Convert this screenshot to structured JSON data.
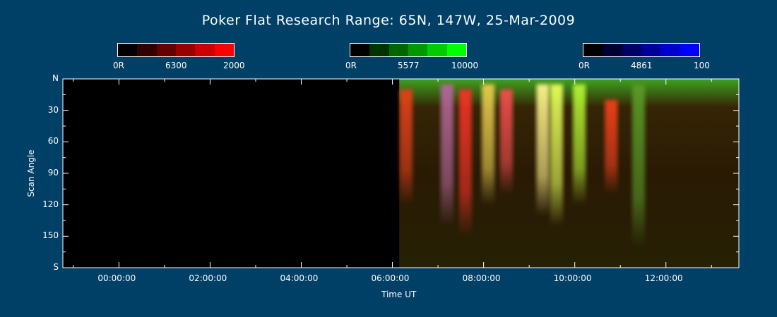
{
  "title": "Poker Flat Research Range: 65N, 147W, 25-Mar-2009",
  "colorbars": [
    {
      "name": "6300",
      "min_label": "0R",
      "mid_label": "6300",
      "max_label": "2000",
      "colors": [
        "#000000",
        "#330000",
        "#660000",
        "#990000",
        "#cc0000",
        "#ff0000"
      ]
    },
    {
      "name": "5577",
      "min_label": "0R",
      "mid_label": "5577",
      "max_label": "10000",
      "colors": [
        "#000000",
        "#003300",
        "#006600",
        "#009900",
        "#00cc00",
        "#00ff00"
      ]
    },
    {
      "name": "4861",
      "min_label": "0R",
      "mid_label": "4861",
      "max_label": "100",
      "colors": [
        "#000000",
        "#000033",
        "#000066",
        "#000099",
        "#0000cc",
        "#0000ff"
      ]
    }
  ],
  "chart_data": {
    "type": "heatmap",
    "title": "Poker Flat Research Range: 65N, 147W, 25-Mar-2009",
    "xlabel": "Time UT",
    "ylabel": "Scan Angle",
    "x_ticks": [
      "00:00:00",
      "02:00:00",
      "04:00:00",
      "06:00:00",
      "08:00:00",
      "10:00:00",
      "12:00:00"
    ],
    "x_tick_hours": [
      0,
      2,
      4,
      6,
      8,
      10,
      12
    ],
    "xlim_hours": [
      -1.23,
      13.6
    ],
    "y_ticks": [
      "N",
      "30",
      "60",
      "90",
      "120",
      "150",
      "S"
    ],
    "y_tick_values": [
      0,
      30,
      60,
      90,
      120,
      150,
      180
    ],
    "ylim": [
      0,
      180
    ],
    "data_start_hours": 6.15,
    "channels": [
      "6300 (red)",
      "5577 (green)",
      "4861 (blue)"
    ],
    "features": [
      {
        "hour": 6.3,
        "r": 0.9,
        "g": 0.25,
        "b": 0.1,
        "angle_from": 10,
        "angle_to": 120
      },
      {
        "hour": 7.2,
        "r": 0.7,
        "g": 0.4,
        "b": 0.6,
        "angle_from": 5,
        "angle_to": 140
      },
      {
        "hour": 7.6,
        "r": 0.95,
        "g": 0.2,
        "b": 0.15,
        "angle_from": 10,
        "angle_to": 150
      },
      {
        "hour": 8.1,
        "r": 0.9,
        "g": 0.8,
        "b": 0.3,
        "angle_from": 5,
        "angle_to": 120
      },
      {
        "hour": 8.5,
        "r": 0.95,
        "g": 0.3,
        "b": 0.3,
        "angle_from": 10,
        "angle_to": 110
      },
      {
        "hour": 9.3,
        "r": 1.0,
        "g": 0.95,
        "b": 0.55,
        "angle_from": 5,
        "angle_to": 130
      },
      {
        "hour": 9.6,
        "r": 0.9,
        "g": 1.0,
        "b": 0.35,
        "angle_from": 5,
        "angle_to": 140
      },
      {
        "hour": 10.1,
        "r": 0.7,
        "g": 0.95,
        "b": 0.2,
        "angle_from": 5,
        "angle_to": 120
      },
      {
        "hour": 10.8,
        "r": 0.95,
        "g": 0.25,
        "b": 0.1,
        "angle_from": 20,
        "angle_to": 110
      },
      {
        "hour": 11.4,
        "r": 0.35,
        "g": 0.6,
        "b": 0.15,
        "angle_from": 5,
        "angle_to": 160
      }
    ]
  }
}
